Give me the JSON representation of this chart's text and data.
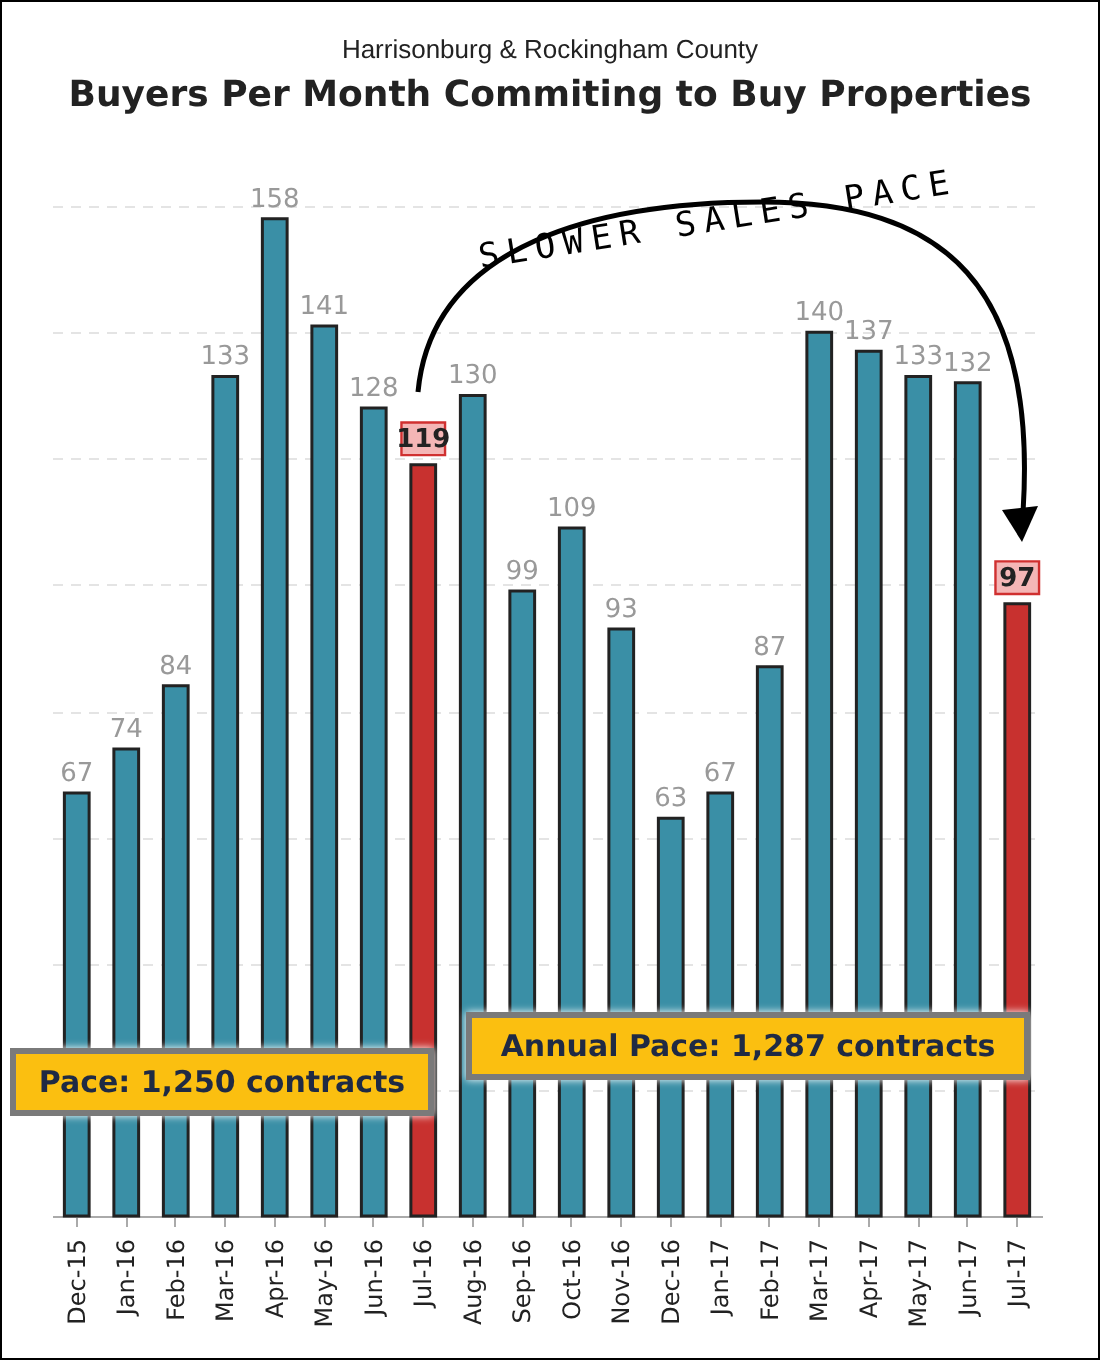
{
  "chart_data": {
    "type": "bar",
    "title": "Buyers Per Month Commiting to Buy Properties",
    "subtitle": "Harrisonburg & Rockingham County",
    "categories": [
      "Dec-15",
      "Jan-16",
      "Feb-16",
      "Mar-16",
      "Apr-16",
      "May-16",
      "Jun-16",
      "Jul-16",
      "Aug-16",
      "Sep-16",
      "Oct-16",
      "Nov-16",
      "Dec-16",
      "Jan-17",
      "Feb-17",
      "Mar-17",
      "Apr-17",
      "May-17",
      "Jun-17",
      "Jul-17"
    ],
    "values": [
      67,
      74,
      84,
      133,
      158,
      141,
      128,
      119,
      130,
      99,
      109,
      93,
      63,
      67,
      87,
      140,
      137,
      133,
      132,
      97
    ],
    "colors": [
      "#3a8fa6",
      "#3a8fa6",
      "#3a8fa6",
      "#3a8fa6",
      "#3a8fa6",
      "#3a8fa6",
      "#3a8fa6",
      "#c8312f",
      "#3a8fa6",
      "#3a8fa6",
      "#3a8fa6",
      "#3a8fa6",
      "#3a8fa6",
      "#3a8fa6",
      "#3a8fa6",
      "#3a8fa6",
      "#3a8fa6",
      "#3a8fa6",
      "#3a8fa6",
      "#c8312f"
    ],
    "ylim": [
      0,
      160
    ],
    "yticks": [
      {
        "value": 0,
        "label": null
      },
      {
        "value": 20,
        "label": null
      },
      {
        "value": 40,
        "label": null
      },
      {
        "value": 60,
        "label": null
      },
      {
        "value": 80,
        "label": null
      },
      {
        "value": 100,
        "label": null
      },
      {
        "value": 120,
        "label": null
      },
      {
        "value": 140,
        "label": null
      },
      {
        "value": 160,
        "label": null
      }
    ],
    "grid": "y",
    "tick_labels": "x",
    "data_labels": true,
    "annotations": [
      "SLOWER SALES PACE",
      "Pace: 1,250 contracts",
      "Annual Pace: 1,287 contracts"
    ]
  }
}
